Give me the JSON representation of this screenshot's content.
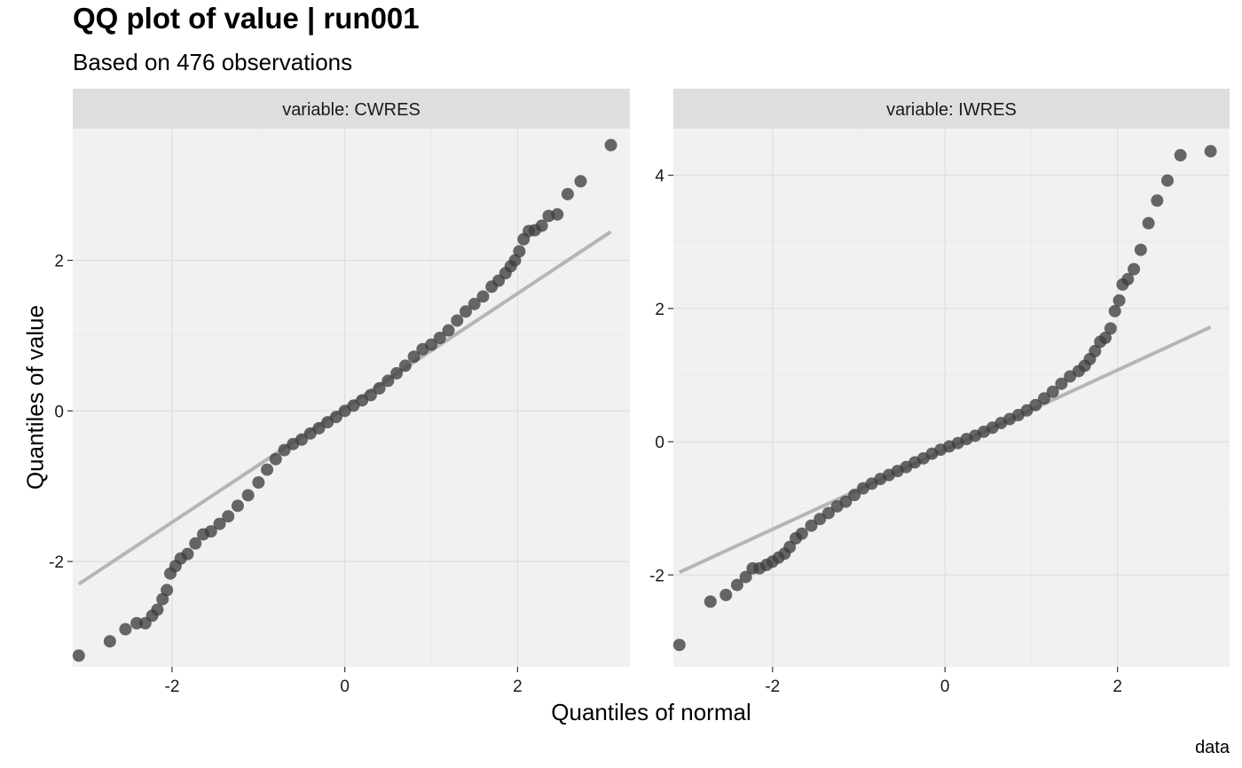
{
  "title": "QQ plot of value | run001",
  "subtitle": "Based on 476 observations",
  "xlabel": "Quantiles of normal",
  "ylabel": "Quantiles of value",
  "caption": "data",
  "colors": {
    "panel_bg": "#f1f1f1",
    "strip_bg": "#dedede",
    "grid": "#dedede",
    "points": "#3d3d3d",
    "ref_line": "#b5b5b5"
  },
  "chart_data": [
    {
      "type": "scatter",
      "facet": "variable: CWRES",
      "xlim": [
        -3.15,
        3.3
      ],
      "ylim": [
        -3.4,
        3.75
      ],
      "x_ticks": [
        -2,
        0,
        2
      ],
      "y_ticks": [
        -2,
        0,
        2
      ],
      "grid": true,
      "reference_line": [
        [
          -3.08,
          -2.3
        ],
        [
          3.08,
          2.38
        ]
      ],
      "points": [
        [
          -3.08,
          -3.25
        ],
        [
          -2.72,
          -3.06
        ],
        [
          -2.54,
          -2.9
        ],
        [
          -2.41,
          -2.82
        ],
        [
          -2.31,
          -2.82
        ],
        [
          -2.23,
          -2.72
        ],
        [
          -2.17,
          -2.64
        ],
        [
          -2.11,
          -2.5
        ],
        [
          -2.06,
          -2.38
        ],
        [
          -2.02,
          -2.16
        ],
        [
          -1.96,
          -2.06
        ],
        [
          -1.9,
          -1.96
        ],
        [
          -1.82,
          -1.9
        ],
        [
          -1.73,
          -1.76
        ],
        [
          -1.64,
          -1.64
        ],
        [
          -1.55,
          -1.6
        ],
        [
          -1.45,
          -1.5
        ],
        [
          -1.35,
          -1.4
        ],
        [
          -1.24,
          -1.26
        ],
        [
          -1.12,
          -1.12
        ],
        [
          -1.0,
          -0.95
        ],
        [
          -0.9,
          -0.78
        ],
        [
          -0.8,
          -0.64
        ],
        [
          -0.7,
          -0.52
        ],
        [
          -0.6,
          -0.44
        ],
        [
          -0.5,
          -0.38
        ],
        [
          -0.4,
          -0.3
        ],
        [
          -0.3,
          -0.23
        ],
        [
          -0.2,
          -0.15
        ],
        [
          -0.1,
          -0.08
        ],
        [
          0.0,
          0.0
        ],
        [
          0.1,
          0.07
        ],
        [
          0.2,
          0.14
        ],
        [
          0.3,
          0.21
        ],
        [
          0.4,
          0.3
        ],
        [
          0.5,
          0.4
        ],
        [
          0.6,
          0.5
        ],
        [
          0.7,
          0.6
        ],
        [
          0.8,
          0.72
        ],
        [
          0.9,
          0.82
        ],
        [
          1.0,
          0.88
        ],
        [
          1.1,
          0.97
        ],
        [
          1.2,
          1.07
        ],
        [
          1.3,
          1.2
        ],
        [
          1.4,
          1.32
        ],
        [
          1.5,
          1.42
        ],
        [
          1.6,
          1.52
        ],
        [
          1.7,
          1.65
        ],
        [
          1.78,
          1.73
        ],
        [
          1.86,
          1.83
        ],
        [
          1.92,
          1.92
        ],
        [
          1.97,
          2.0
        ],
        [
          2.02,
          2.12
        ],
        [
          2.07,
          2.28
        ],
        [
          2.13,
          2.39
        ],
        [
          2.2,
          2.4
        ],
        [
          2.28,
          2.46
        ],
        [
          2.36,
          2.59
        ],
        [
          2.46,
          2.61
        ],
        [
          2.58,
          2.88
        ],
        [
          2.73,
          3.05
        ],
        [
          3.08,
          3.53
        ]
      ]
    },
    {
      "type": "scatter",
      "facet": "variable: IWRES",
      "xlim": [
        -3.15,
        3.3
      ],
      "ylim": [
        -3.38,
        4.7
      ],
      "x_ticks": [
        -2,
        0,
        2
      ],
      "y_ticks": [
        -2,
        0,
        2,
        4
      ],
      "grid": true,
      "reference_line": [
        [
          -3.08,
          -1.96
        ],
        [
          3.08,
          1.72
        ]
      ],
      "points": [
        [
          -3.08,
          -3.05
        ],
        [
          -2.72,
          -2.4
        ],
        [
          -2.54,
          -2.3
        ],
        [
          -2.41,
          -2.15
        ],
        [
          -2.31,
          -2.03
        ],
        [
          -2.23,
          -1.9
        ],
        [
          -2.15,
          -1.9
        ],
        [
          -2.07,
          -1.85
        ],
        [
          -2.0,
          -1.8
        ],
        [
          -1.93,
          -1.74
        ],
        [
          -1.86,
          -1.68
        ],
        [
          -1.8,
          -1.58
        ],
        [
          -1.73,
          -1.45
        ],
        [
          -1.66,
          -1.38
        ],
        [
          -1.55,
          -1.26
        ],
        [
          -1.45,
          -1.16
        ],
        [
          -1.35,
          -1.07
        ],
        [
          -1.25,
          -0.97
        ],
        [
          -1.15,
          -0.9
        ],
        [
          -1.05,
          -0.8
        ],
        [
          -0.95,
          -0.7
        ],
        [
          -0.85,
          -0.63
        ],
        [
          -0.75,
          -0.56
        ],
        [
          -0.65,
          -0.5
        ],
        [
          -0.55,
          -0.44
        ],
        [
          -0.45,
          -0.38
        ],
        [
          -0.35,
          -0.31
        ],
        [
          -0.25,
          -0.25
        ],
        [
          -0.15,
          -0.18
        ],
        [
          -0.05,
          -0.12
        ],
        [
          0.05,
          -0.07
        ],
        [
          0.15,
          -0.02
        ],
        [
          0.25,
          0.04
        ],
        [
          0.35,
          0.09
        ],
        [
          0.45,
          0.15
        ],
        [
          0.55,
          0.21
        ],
        [
          0.65,
          0.28
        ],
        [
          0.75,
          0.34
        ],
        [
          0.85,
          0.4
        ],
        [
          0.95,
          0.47
        ],
        [
          1.05,
          0.55
        ],
        [
          1.15,
          0.65
        ],
        [
          1.25,
          0.75
        ],
        [
          1.35,
          0.87
        ],
        [
          1.45,
          0.98
        ],
        [
          1.55,
          1.06
        ],
        [
          1.62,
          1.14
        ],
        [
          1.68,
          1.24
        ],
        [
          1.74,
          1.36
        ],
        [
          1.8,
          1.5
        ],
        [
          1.86,
          1.56
        ],
        [
          1.92,
          1.7
        ],
        [
          1.97,
          1.96
        ],
        [
          2.02,
          2.12
        ],
        [
          2.06,
          2.36
        ],
        [
          2.12,
          2.44
        ],
        [
          2.19,
          2.59
        ],
        [
          2.27,
          2.88
        ],
        [
          2.36,
          3.28
        ],
        [
          2.46,
          3.62
        ],
        [
          2.58,
          3.92
        ],
        [
          2.73,
          4.3
        ],
        [
          3.08,
          4.36
        ]
      ]
    }
  ]
}
